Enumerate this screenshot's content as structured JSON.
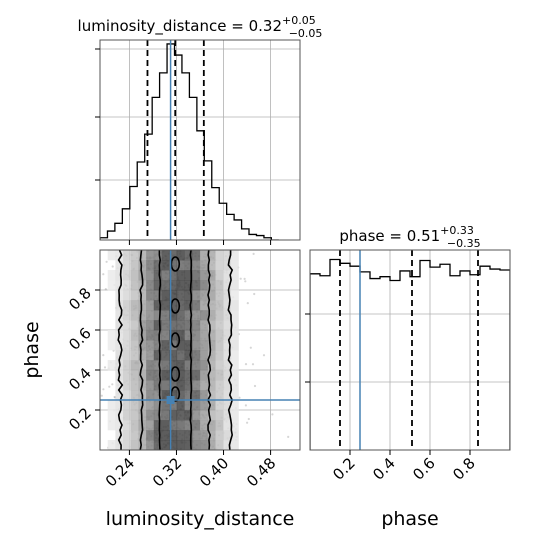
{
  "chart_data": {
    "type": "corner",
    "colors": {
      "truth": "#4682b4",
      "hist": "#000000",
      "grid": "#b0b0b0"
    },
    "parameters": [
      {
        "name": "luminosity_distance",
        "xlabel": "luminosity_distance",
        "title_prefix": "luminosity_distance = 0.32",
        "title_plus": "+0.05",
        "title_minus": "−0.05",
        "range": [
          0.19,
          0.53
        ],
        "ticks": [
          0.24,
          0.32,
          0.4,
          0.48
        ],
        "tick_labels": [
          "0.24",
          "0.32",
          "0.40",
          "0.48"
        ],
        "quantiles": [
          0.2707,
          0.3179,
          0.3665
        ],
        "truth": 0.31,
        "hist_edges": [
          0.19,
          0.2027,
          0.2153,
          0.228,
          0.2407,
          0.2533,
          0.266,
          0.2787,
          0.2913,
          0.304,
          0.3167,
          0.3293,
          0.342,
          0.3547,
          0.3673,
          0.38,
          0.3927,
          0.4053,
          0.418,
          0.4307,
          0.4433,
          0.456,
          0.4687,
          0.4813,
          0.494
        ],
        "hist_counts": [
          2,
          8,
          15,
          28,
          48,
          70,
          95,
          128,
          150,
          176,
          166,
          150,
          128,
          98,
          71,
          47,
          33,
          23,
          18,
          10,
          5,
          4,
          2,
          0
        ]
      },
      {
        "name": "phase",
        "xlabel": "phase",
        "ylabel": "phase",
        "title_prefix": "phase = 0.51",
        "title_plus": "+0.33",
        "title_minus": "−0.35",
        "range": [
          0.0,
          1.0
        ],
        "ticks": [
          0.2,
          0.4,
          0.6,
          0.8
        ],
        "tick_labels": [
          "0.2",
          "0.4",
          "0.6",
          "0.8"
        ],
        "quantiles": [
          0.15,
          0.51,
          0.84
        ],
        "truth": 0.25,
        "hist_edges": [
          0.0,
          0.05,
          0.1,
          0.15,
          0.2,
          0.25,
          0.3,
          0.35,
          0.4,
          0.45,
          0.5,
          0.55,
          0.6,
          0.65,
          0.7,
          0.75,
          0.8,
          0.85,
          0.9,
          0.95,
          1.0
        ],
        "hist_counts": [
          185,
          183,
          200,
          196,
          193,
          187,
          180,
          182,
          178,
          188,
          182,
          199,
          192,
          195,
          183,
          188,
          184,
          193,
          190,
          189
        ]
      }
    ],
    "scatter_2d": {
      "x_param": "luminosity_distance",
      "y_param": "phase",
      "truth": [
        0.31,
        0.25
      ],
      "marker_color": "#4682b4"
    }
  }
}
